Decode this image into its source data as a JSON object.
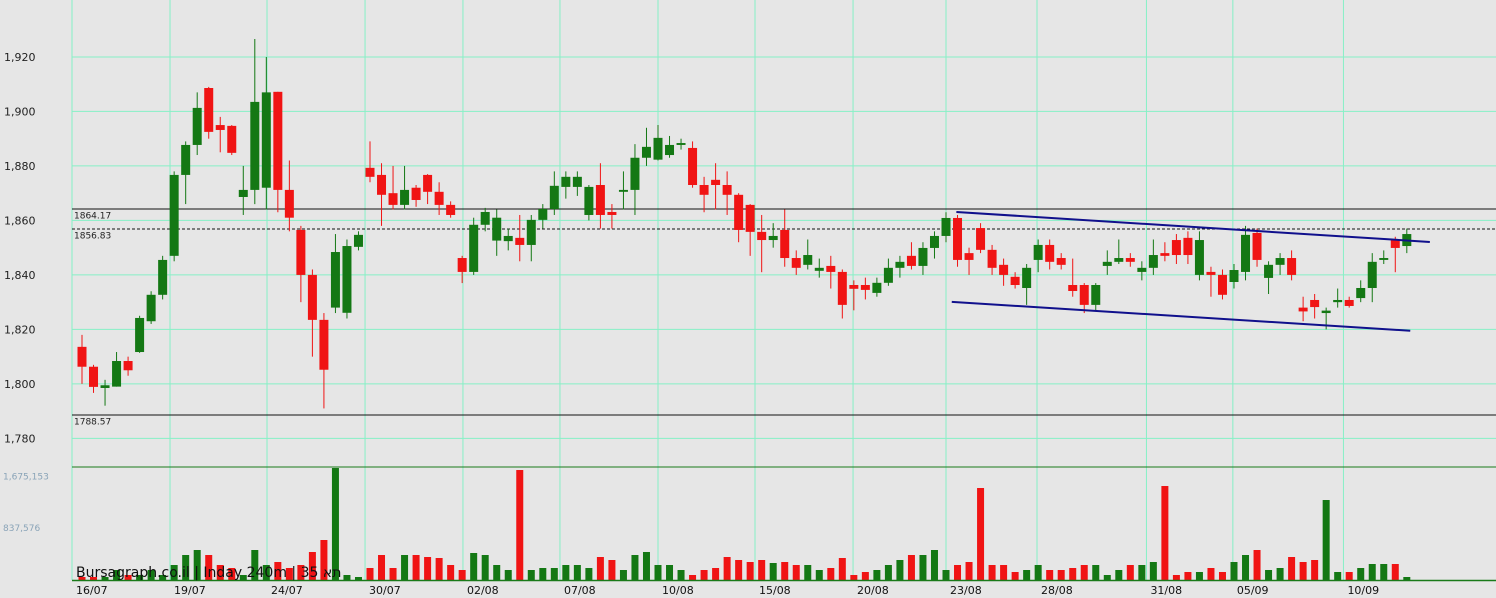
{
  "chart_data": {
    "type": "candlestick",
    "watermark": "Bursagraph.co.il | Inday 240m | 35 תא",
    "ylim": [
      1769.5,
      1940.9
    ],
    "yticks": [
      {
        "value": 1780,
        "label": "1,780"
      },
      {
        "value": 1800,
        "label": "1,800"
      },
      {
        "value": 1820,
        "label": "1,820"
      },
      {
        "value": 1840,
        "label": "1,840"
      },
      {
        "value": 1860,
        "label": "1,860"
      },
      {
        "value": 1880,
        "label": "1,880"
      },
      {
        "value": 1900,
        "label": "1,900"
      },
      {
        "value": 1920,
        "label": "1,920"
      }
    ],
    "xlim": [
      -0.87,
      123.5
    ],
    "xticks": [
      {
        "value": -0.87,
        "label": "16/07"
      },
      {
        "value": 7.64,
        "label": "19/07"
      },
      {
        "value": 16.06,
        "label": "24/07"
      },
      {
        "value": 24.57,
        "label": "30/07"
      },
      {
        "value": 33.07,
        "label": "02/08"
      },
      {
        "value": 41.49,
        "label": "07/08"
      },
      {
        "value": 50,
        "label": "10/08"
      },
      {
        "value": 58.42,
        "label": "15/08"
      },
      {
        "value": 66.93,
        "label": "20/08"
      },
      {
        "value": 75,
        "label": "23/08"
      },
      {
        "value": 82.9,
        "label": "28/08"
      },
      {
        "value": 92.4,
        "label": "31/08"
      },
      {
        "value": 99.9,
        "label": "05/09"
      },
      {
        "value": 109.5,
        "label": "10/09"
      }
    ],
    "grid": true,
    "up_color": "#147814",
    "down_color": "#f01414",
    "levels": [
      {
        "value": 1864.17,
        "style": "solid"
      },
      {
        "value": 1856.83,
        "style": "dashed"
      },
      {
        "value": 1788.57,
        "style": "solid"
      }
    ],
    "trendlines": [
      {
        "x": [
          75.9,
          117
        ],
        "y": [
          1863.1,
          1852.1
        ]
      },
      {
        "x": [
          75.5,
          115.3
        ],
        "y": [
          1830.1,
          1819.5
        ]
      }
    ],
    "trend_color": "#10108c",
    "open": [
      1813.6,
      1806.3,
      1798.5,
      1799,
      1808.4,
      1811.7,
      1823,
      1832.7,
      1847,
      1876.7,
      1887.7,
      1908.6,
      1895,
      1894.7,
      1868.6,
      1871.2,
      1872,
      1907.2,
      1871.2,
      1856.5,
      1840,
      1823.5,
      1828,
      1826.1,
      1850.3,
      1879.3,
      1876.7,
      1870,
      1865.7,
      1872,
      1876.7,
      1870.5,
      1865.7,
      1846.2,
      1841.1,
      1858.4,
      1852.6,
      1852.4,
      1853.6,
      1851,
      1860.2,
      1864.2,
      1872.3,
      1872.3,
      1862,
      1873,
      1863.1,
      1870.5,
      1871.2,
      1883,
      1882.3,
      1884,
      1887.7,
      1886.6,
      1873,
      1874.9,
      1873,
      1869.4,
      1865.7,
      1855.8,
      1852.8,
      1856.5,
      1846.2,
      1843.7,
      1841.5,
      1843.3,
      1841.1,
      1836.3,
      1836.3,
      1833.4,
      1837.1,
      1842.6,
      1847,
      1843.3,
      1849.9,
      1854.3,
      1860.9,
      1848,
      1857.2,
      1849.2,
      1843.7,
      1839.3,
      1835.2,
      1845.5,
      1851,
      1846.2,
      1836.3,
      1836.3,
      1829,
      1843.3,
      1844.8,
      1846.2,
      1841.1,
      1842.6,
      1848,
      1852.8,
      1853.6,
      1840,
      1841.1,
      1840,
      1837.4,
      1841.1,
      1855.4,
      1838.9,
      1843.7,
      1846.2,
      1828,
      1830.8,
      1826,
      1830,
      1830.8,
      1831.5,
      1835.2,
      1845.5,
      1852.8,
      1850.6
    ],
    "high": [
      1818,
      1807,
      1801.5,
      1811.7,
      1810,
      1825,
      1834,
      1847,
      1878,
      1889,
      1907,
      1909,
      1898,
      1895,
      1880,
      1926.6,
      1920,
      1907.2,
      1882,
      1858,
      1842,
      1826,
      1855,
      1853,
      1856,
      1889,
      1881,
      1880,
      1880,
      1873,
      1877,
      1874,
      1867,
      1847,
      1861,
      1864.6,
      1864,
      1857,
      1862,
      1862,
      1866,
      1878,
      1878,
      1878,
      1873,
      1881,
      1866,
      1878,
      1888,
      1894,
      1895,
      1891,
      1890,
      1889,
      1876,
      1881,
      1878,
      1870,
      1866,
      1862,
      1859,
      1864,
      1849,
      1853,
      1846,
      1847,
      1842,
      1838,
      1839,
      1839,
      1846,
      1847,
      1852,
      1852,
      1856,
      1863,
      1862,
      1850,
      1859,
      1851,
      1846,
      1841,
      1844,
      1853,
      1853,
      1848,
      1846,
      1837,
      1837,
      1849,
      1853,
      1848,
      1845,
      1853,
      1852,
      1855,
      1856,
      1856,
      1843,
      1842,
      1844,
      1858,
      1857,
      1845,
      1848,
      1849,
      1832,
      1833,
      1828,
      1835,
      1832,
      1838,
      1848,
      1849,
      1854,
      1857
    ],
    "low": [
      1800,
      1796.7,
      1792,
      1799,
      1803,
      1811.4,
      1822,
      1831,
      1845,
      1866,
      1884,
      1890,
      1885,
      1884,
      1862,
      1866,
      1864,
      1863,
      1856,
      1830,
      1810,
      1791,
      1826,
      1824,
      1849,
      1874,
      1858,
      1864,
      1864,
      1865,
      1866,
      1862,
      1861,
      1837,
      1840,
      1856,
      1847,
      1849,
      1845,
      1845,
      1857,
      1862,
      1868,
      1869,
      1860,
      1857,
      1857,
      1864,
      1862,
      1880,
      1882,
      1883,
      1886,
      1872,
      1863,
      1864,
      1862,
      1852,
      1847,
      1841,
      1850,
      1843,
      1840,
      1842,
      1839,
      1835,
      1824,
      1827,
      1831,
      1832,
      1836,
      1839,
      1842,
      1840,
      1846,
      1852,
      1843,
      1840,
      1848,
      1840,
      1836,
      1835,
      1829,
      1841,
      1842,
      1842,
      1832,
      1826,
      1827,
      1840,
      1844,
      1843,
      1838,
      1840,
      1845,
      1844,
      1844,
      1838,
      1832,
      1831,
      1835,
      1838,
      1843,
      1833,
      1840,
      1838,
      1823,
      1824,
      1820,
      1828,
      1828,
      1830,
      1830,
      1844,
      1841,
      1848
    ],
    "close": [
      1806.3,
      1798.9,
      1799.5,
      1808.4,
      1805,
      1824.2,
      1832.7,
      1845.5,
      1876.7,
      1887.7,
      1901.3,
      1892.5,
      1893.2,
      1884.8,
      1871.2,
      1903.5,
      1907,
      1871.2,
      1861,
      1840,
      1823.5,
      1805.2,
      1848.4,
      1850.6,
      1854.7,
      1876,
      1869.4,
      1865.7,
      1871.2,
      1867.5,
      1870.5,
      1865.7,
      1862,
      1841.1,
      1858.4,
      1863.1,
      1861,
      1854.3,
      1851,
      1860.2,
      1864.2,
      1872.7,
      1876,
      1876,
      1872.3,
      1862,
      1862,
      1871.2,
      1883,
      1887,
      1890.3,
      1887.7,
      1888.4,
      1873,
      1869.4,
      1873,
      1869.4,
      1856.5,
      1855.8,
      1852.8,
      1854.3,
      1846.2,
      1842.6,
      1847.3,
      1842.6,
      1841.1,
      1829,
      1834.9,
      1834.5,
      1837.1,
      1842.6,
      1844.8,
      1843.3,
      1849.9,
      1854.3,
      1860.9,
      1845.5,
      1845.5,
      1849.2,
      1842.6,
      1840,
      1836.3,
      1842.6,
      1851,
      1844.8,
      1843.7,
      1834.1,
      1829,
      1836.3,
      1844.8,
      1846.2,
      1844.8,
      1842.6,
      1847.3,
      1847,
      1847.3,
      1847.3,
      1852.8,
      1840,
      1832.7,
      1841.8,
      1854.7,
      1845.5,
      1843.7,
      1846.2,
      1840,
      1826.6,
      1828.2,
      1826.9,
      1830.8,
      1828.6,
      1835.2,
      1844.8,
      1846.2,
      1849.9,
      1855
    ],
    "volume": {
      "ylim": [
        0,
        1838000
      ],
      "yticks": [
        {
          "value": 837576,
          "label": "837,576"
        },
        {
          "value": 1675153,
          "label": "1,675,153"
        }
      ],
      "values": [
        48800,
        48800,
        48800,
        162600,
        81300,
        81300,
        162600,
        81300,
        244000,
        406600,
        487900,
        406600,
        244000,
        195200,
        81300,
        487900,
        244000,
        292800,
        195200,
        244000,
        455400,
        650600,
        1821600,
        81300,
        48800,
        195200,
        406600,
        195200,
        406600,
        406600,
        374100,
        357800,
        244000,
        162600,
        439100,
        406600,
        244000,
        162600,
        1789000,
        162600,
        195200,
        195200,
        244000,
        244000,
        195200,
        374100,
        325300,
        162600,
        406600,
        455400,
        244000,
        244000,
        162600,
        81300,
        162600,
        195200,
        374100,
        325300,
        292800,
        325300,
        276500,
        292800,
        244000,
        244000,
        162600,
        195200,
        357800,
        81300,
        130100,
        162600,
        244000,
        325300,
        406600,
        406600,
        487900,
        162600,
        244000,
        292800,
        1496300,
        244000,
        244000,
        130100,
        162600,
        244000,
        162600,
        162600,
        195200,
        244000,
        244000,
        81300,
        162600,
        244000,
        244000,
        292800,
        1528800,
        81300,
        130100,
        130100,
        195200,
        130100,
        292800,
        406600,
        487900,
        162600,
        195200,
        374100,
        292800,
        325300,
        1301100,
        130100,
        130100,
        195200,
        260200,
        260200,
        260200,
        48800
      ]
    }
  }
}
